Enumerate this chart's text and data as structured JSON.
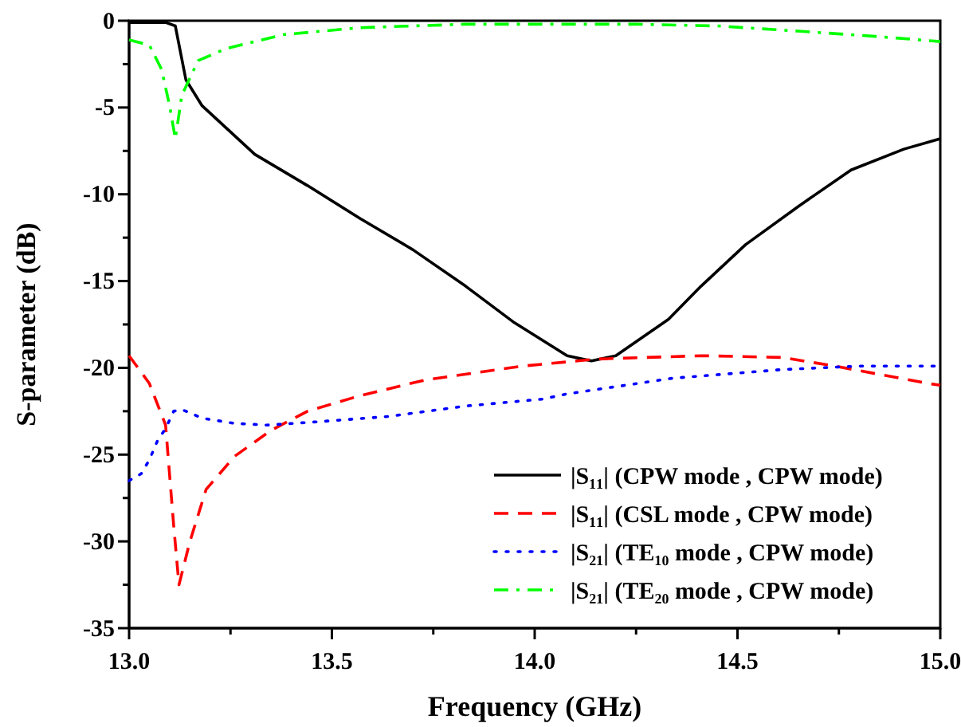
{
  "chart_data": {
    "type": "line",
    "xlabel": "Frequency (GHz)",
    "ylabel": "S-parameter (dB)",
    "xlim": [
      13.0,
      15.0
    ],
    "ylim": [
      -35,
      0
    ],
    "xticks": [
      {
        "value": 13.0,
        "label": "13.0"
      },
      {
        "value": 13.25,
        "label": null
      },
      {
        "value": 13.5,
        "label": "13.5"
      },
      {
        "value": 13.75,
        "label": null
      },
      {
        "value": 14.0,
        "label": "14.0"
      },
      {
        "value": 14.25,
        "label": null
      },
      {
        "value": 14.5,
        "label": "14.5"
      },
      {
        "value": 14.75,
        "label": null
      },
      {
        "value": 15.0,
        "label": "15.0"
      }
    ],
    "yticks": [
      -35,
      {
        "value": -32.5,
        "label": null
      },
      -30,
      {
        "value": -27.5,
        "label": null
      },
      -25,
      {
        "value": -22.5,
        "label": null
      },
      -20,
      {
        "value": -17.5,
        "label": null
      },
      -15,
      {
        "value": -12.5,
        "label": null
      },
      -10,
      {
        "value": -7.5,
        "label": null
      },
      -5,
      {
        "value": -2.5,
        "label": null
      },
      0
    ],
    "grid": false,
    "legend": "bottom right",
    "marker": "none",
    "series": [
      {
        "name": "|S₁₁| (CPW mode , CPW mode)",
        "color": "#000000",
        "line_style": "solid",
        "x": [
          13.0,
          13.05,
          13.09,
          13.114,
          13.14,
          13.18,
          13.31,
          13.44,
          13.57,
          13.7,
          13.83,
          13.95,
          14.08,
          14.14,
          14.2,
          14.33,
          14.41,
          14.52,
          14.65,
          14.78,
          14.91,
          15.0
        ],
        "values": [
          -0.1,
          -0.1,
          -0.1,
          -0.3,
          -3.4,
          -4.9,
          -7.7,
          -9.5,
          -11.4,
          -13.2,
          -15.3,
          -17.4,
          -19.3,
          -19.6,
          -19.3,
          -17.2,
          -15.3,
          -12.9,
          -10.7,
          -8.6,
          -7.4,
          -6.8
        ]
      },
      {
        "name": "|S₁₁| (CSL mode , CPW mode)",
        "color": "#ff0000",
        "line_style": "dashed",
        "x": [
          13.0,
          13.05,
          13.09,
          13.11,
          13.123,
          13.15,
          13.19,
          13.26,
          13.35,
          13.44,
          13.57,
          13.73,
          13.97,
          14.15,
          14.41,
          14.61,
          14.74,
          14.97,
          15.0
        ],
        "values": [
          -19.3,
          -20.9,
          -23.3,
          -29.1,
          -32.5,
          -30.0,
          -27.0,
          -25.1,
          -23.6,
          -22.5,
          -21.6,
          -20.7,
          -19.9,
          -19.5,
          -19.3,
          -19.4,
          -19.9,
          -20.9,
          -21.0
        ]
      },
      {
        "name": "|S₂₁| (TE₁₀ mode , CPW mode)",
        "color": "#0000ff",
        "line_style": "dotted",
        "x": [
          13.0,
          13.03,
          13.05,
          13.07,
          13.09,
          13.11,
          13.13,
          13.18,
          13.26,
          13.34,
          13.47,
          13.64,
          13.83,
          14.02,
          14.08,
          14.34,
          14.61,
          14.8,
          15.0
        ],
        "values": [
          -26.5,
          -26.1,
          -25.3,
          -24.2,
          -23.5,
          -22.5,
          -22.4,
          -22.9,
          -23.2,
          -23.3,
          -23.1,
          -22.8,
          -22.2,
          -21.8,
          -21.5,
          -20.6,
          -20.1,
          -19.9,
          -19.9
        ]
      },
      {
        "name": "|S₂₁| (TE₂₀ mode , CPW mode)",
        "color": "#00ff00",
        "line_style": "dashdot",
        "x": [
          13.0,
          13.05,
          13.08,
          13.1,
          13.114,
          13.13,
          13.17,
          13.24,
          13.38,
          13.57,
          13.83,
          14.25,
          14.45,
          14.65,
          14.84,
          15.0
        ],
        "values": [
          -1.1,
          -1.4,
          -2.8,
          -4.9,
          -6.8,
          -4.3,
          -2.3,
          -1.6,
          -0.8,
          -0.4,
          -0.2,
          -0.2,
          -0.3,
          -0.6,
          -0.9,
          -1.2
        ]
      }
    ]
  }
}
